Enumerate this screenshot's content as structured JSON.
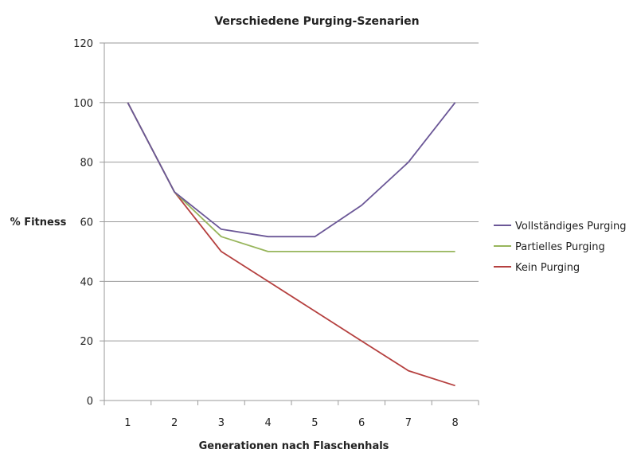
{
  "chart_data": {
    "type": "line",
    "title": "Verschiedene Purging-Szenarien",
    "xlabel": "Generationen nach Flaschenhals",
    "ylabel": "% Fitness",
    "categories": [
      "1",
      "2",
      "3",
      "4",
      "5",
      "6",
      "7",
      "8"
    ],
    "ylim": [
      0,
      120
    ],
    "yticks": [
      "0",
      "20",
      "40",
      "60",
      "80",
      "100",
      "120"
    ],
    "grid": true,
    "legend_position": "right",
    "series": [
      {
        "name": "Vollständiges Purging",
        "color": "#6b5797",
        "values": [
          100,
          70,
          57.5,
          55,
          55,
          65.5,
          80,
          100
        ]
      },
      {
        "name": "Partielles Purging",
        "color": "#97b55b",
        "values": [
          100,
          70,
          55,
          50,
          50,
          50,
          50,
          50
        ]
      },
      {
        "name": "Kein Purging",
        "color": "#b5403f",
        "values": [
          100,
          70,
          50,
          40,
          30,
          20,
          10,
          5
        ]
      }
    ]
  }
}
